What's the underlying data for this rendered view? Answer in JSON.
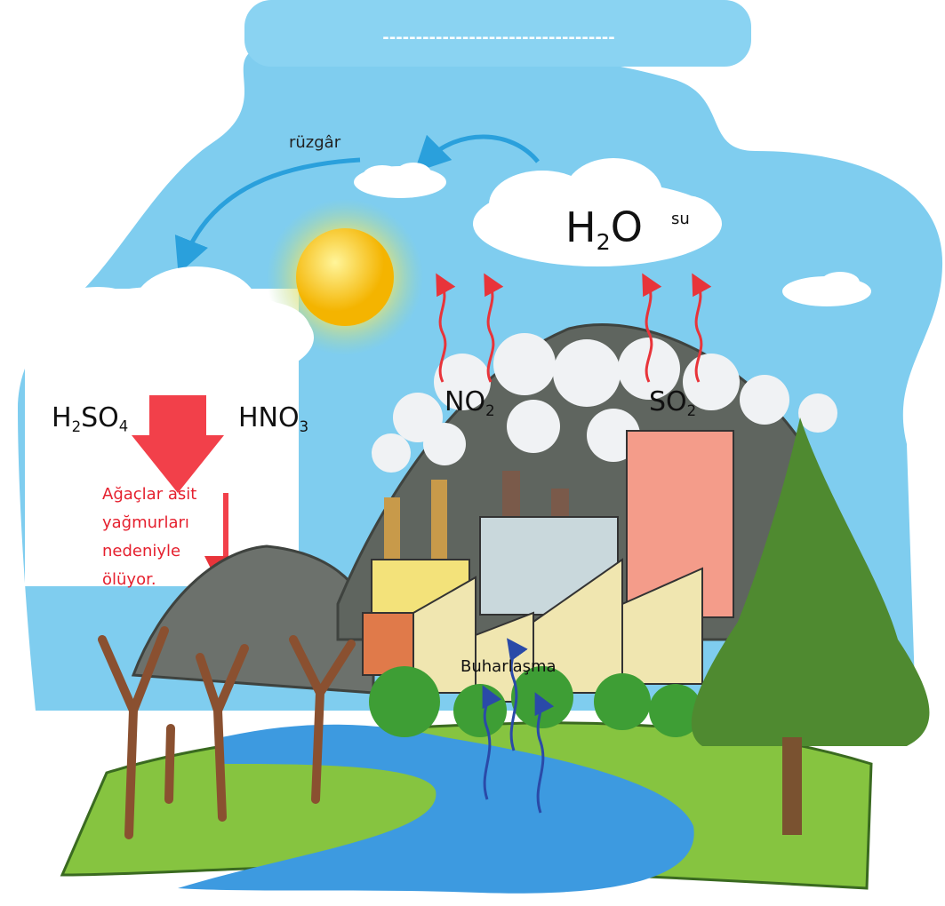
{
  "banner": {
    "text": "-----------------------------------"
  },
  "wind": {
    "label": "rüzgâr"
  },
  "water": {
    "formula": [
      "H",
      "2",
      "O"
    ],
    "label": "su"
  },
  "gases": [
    {
      "formula": [
        "NO",
        "2"
      ]
    },
    {
      "formula": [
        "SO",
        "2"
      ]
    }
  ],
  "acids": [
    {
      "formula": [
        "H",
        "2",
        "SO",
        "4"
      ]
    },
    {
      "formula": [
        "HNO",
        "3"
      ]
    }
  ],
  "note": {
    "lines": [
      "Ağaçlar asit",
      "yağmurları",
      "nedeniyle",
      "ölüyor."
    ]
  },
  "evaporation": {
    "label": "Buharlaşma"
  }
}
